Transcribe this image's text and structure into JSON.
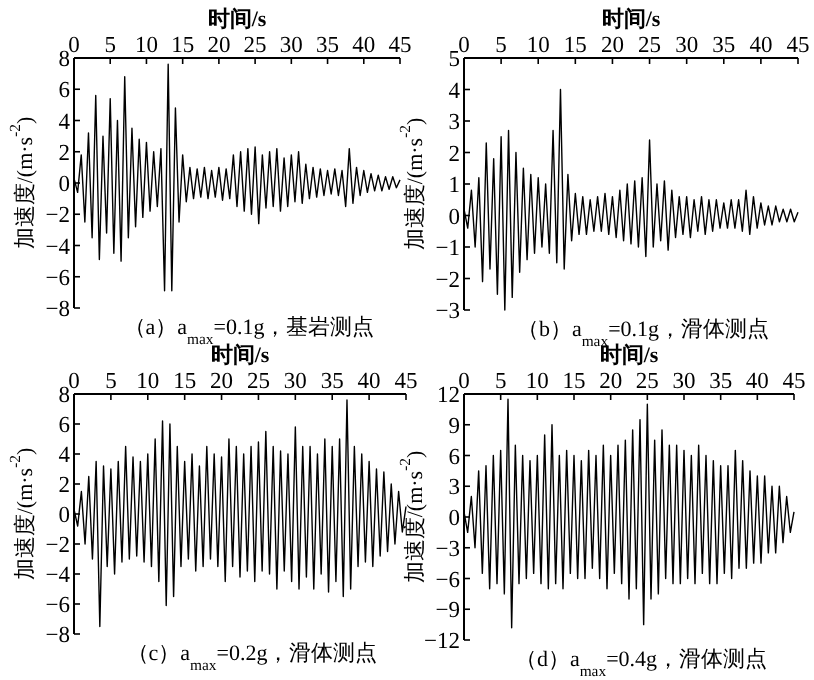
{
  "chart_data": [
    {
      "type": "line",
      "title": "（a）a$_{max}$=0.1g，基岩测点",
      "xlabel": "时间/s",
      "ylabel": "加速度/(m·s$^{-2}$)",
      "color": "#000000",
      "xlim": [
        0,
        45
      ],
      "xticks": [
        0,
        5,
        10,
        15,
        20,
        25,
        30,
        35,
        40,
        45
      ],
      "ylim": [
        -8,
        8
      ],
      "yticks": [
        -8,
        -6,
        -4,
        -2,
        0,
        2,
        4,
        6,
        8
      ],
      "x": [
        0,
        0.5,
        1,
        1.5,
        2,
        2.5,
        3,
        3.5,
        4,
        4.5,
        5,
        5.5,
        6,
        6.5,
        7,
        7.5,
        8,
        8.5,
        9,
        9.5,
        10,
        10.5,
        11,
        11.5,
        12,
        12.5,
        13,
        13.5,
        14,
        14.5,
        15,
        15.5,
        16,
        16.5,
        17,
        17.5,
        18,
        18.5,
        19,
        19.5,
        20,
        20.5,
        21,
        21.5,
        22,
        22.5,
        23,
        23.5,
        24,
        24.5,
        25,
        25.5,
        26,
        26.5,
        27,
        27.5,
        28,
        28.5,
        29,
        29.5,
        30,
        30.5,
        31,
        31.5,
        32,
        32.5,
        33,
        33.5,
        34,
        34.5,
        35,
        35.5,
        36,
        36.5,
        37,
        37.5,
        38,
        38.5,
        39,
        39.5,
        40,
        40.5,
        41,
        41.5,
        42,
        42.5,
        43,
        43.5,
        44,
        44.5,
        45
      ],
      "values": [
        0.3,
        -0.6,
        1.8,
        -2.5,
        3.2,
        -3.5,
        5.6,
        -4.9,
        3.0,
        -3.2,
        5.4,
        -4.5,
        4.0,
        -5.0,
        6.8,
        -3.5,
        3.5,
        -2.8,
        2.8,
        -2.2,
        2.6,
        -1.8,
        2.0,
        -1.5,
        2.2,
        -6.9,
        7.6,
        -6.9,
        4.8,
        -2.5,
        1.8,
        -1.2,
        1.0,
        -1.0,
        0.9,
        -0.9,
        1.0,
        -1.0,
        0.8,
        -0.9,
        1.0,
        -1.1,
        0.9,
        -1.0,
        1.8,
        -1.5,
        2.0,
        -1.8,
        2.2,
        -2.0,
        2.3,
        -2.6,
        1.8,
        -1.6,
        2.0,
        -1.5,
        2.2,
        -1.8,
        1.6,
        -1.5,
        1.8,
        -1.2,
        2.0,
        -1.3,
        1.2,
        -1.0,
        1.0,
        -0.9,
        0.9,
        -0.8,
        0.8,
        -0.7,
        0.9,
        -0.8,
        0.8,
        -1.5,
        2.2,
        -1.3,
        1.0,
        -0.8,
        0.8,
        -0.6,
        0.6,
        -0.5,
        0.5,
        -0.5,
        0.4,
        -0.4,
        0.4,
        -0.3,
        0.2
      ]
    },
    {
      "type": "line",
      "title": "（b）a$_{max}$=0.1g，滑体测点",
      "xlabel": "时间/s",
      "ylabel": "加速度/(m·s$^{-2}$)",
      "color": "#000000",
      "xlim": [
        0,
        45
      ],
      "xticks": [
        0,
        5,
        10,
        15,
        20,
        25,
        30,
        35,
        40,
        45
      ],
      "ylim": [
        -3,
        5
      ],
      "yticks": [
        -3,
        -2,
        -1,
        0,
        1,
        2,
        3,
        4,
        5
      ],
      "x": [
        0,
        0.5,
        1,
        1.5,
        2,
        2.5,
        3,
        3.5,
        4,
        4.5,
        5,
        5.5,
        6,
        6.5,
        7,
        7.5,
        8,
        8.5,
        9,
        9.5,
        10,
        10.5,
        11,
        11.5,
        12,
        12.5,
        13,
        13.5,
        14,
        14.5,
        15,
        15.5,
        16,
        16.5,
        17,
        17.5,
        18,
        18.5,
        19,
        19.5,
        20,
        20.5,
        21,
        21.5,
        22,
        22.5,
        23,
        23.5,
        24,
        24.5,
        25,
        25.5,
        26,
        26.5,
        27,
        27.5,
        28,
        28.5,
        29,
        29.5,
        30,
        30.5,
        31,
        31.5,
        32,
        32.5,
        33,
        33.5,
        34,
        34.5,
        35,
        35.5,
        36,
        36.5,
        37,
        37.5,
        38,
        38.5,
        39,
        39.5,
        40,
        40.5,
        41,
        41.5,
        42,
        42.5,
        43,
        43.5,
        44,
        44.5,
        45
      ],
      "values": [
        0.2,
        -0.4,
        0.8,
        -1.0,
        1.2,
        -2.1,
        2.3,
        -1.7,
        1.8,
        -2.5,
        2.5,
        -3.0,
        2.7,
        -2.6,
        2.0,
        -1.8,
        1.5,
        -1.4,
        1.3,
        -1.2,
        1.2,
        -1.0,
        1.0,
        -1.2,
        2.7,
        -1.5,
        4.0,
        -1.7,
        1.3,
        -0.8,
        0.7,
        -0.6,
        0.6,
        -0.6,
        0.5,
        -0.5,
        0.6,
        -0.5,
        0.7,
        -0.6,
        0.6,
        -0.7,
        0.8,
        -0.8,
        1.0,
        -0.9,
        1.1,
        -1.0,
        1.2,
        -1.3,
        2.4,
        -1.0,
        1.0,
        -0.8,
        1.1,
        -1.1,
        0.8,
        -0.7,
        0.6,
        -0.6,
        0.6,
        -0.7,
        0.5,
        -0.5,
        0.6,
        -0.6,
        0.5,
        -0.5,
        0.5,
        -0.4,
        0.4,
        -0.4,
        0.5,
        -0.4,
        0.5,
        -0.5,
        0.8,
        -0.6,
        0.6,
        -0.4,
        0.4,
        -0.3,
        0.3,
        -0.3,
        0.3,
        -0.2,
        0.2,
        -0.2,
        0.2,
        -0.2,
        0.1
      ]
    },
    {
      "type": "line",
      "title": "（c）a$_{max}$=0.2g，滑体测点",
      "xlabel": "时间/s",
      "ylabel": "加速度/(m·s$^{-2}$)",
      "color": "#000000",
      "xlim": [
        0,
        45
      ],
      "xticks": [
        0,
        5,
        10,
        15,
        20,
        25,
        30,
        35,
        40,
        45
      ],
      "ylim": [
        -8,
        8
      ],
      "yticks": [
        -8,
        -6,
        -4,
        -2,
        0,
        2,
        4,
        6,
        8
      ],
      "x": [
        0,
        0.5,
        1,
        1.5,
        2,
        2.5,
        3,
        3.5,
        4,
        4.5,
        5,
        5.5,
        6,
        6.5,
        7,
        7.5,
        8,
        8.5,
        9,
        9.5,
        10,
        10.5,
        11,
        11.5,
        12,
        12.5,
        13,
        13.5,
        14,
        14.5,
        15,
        15.5,
        16,
        16.5,
        17,
        17.5,
        18,
        18.5,
        19,
        19.5,
        20,
        20.5,
        21,
        21.5,
        22,
        22.5,
        23,
        23.5,
        24,
        24.5,
        25,
        25.5,
        26,
        26.5,
        27,
        27.5,
        28,
        28.5,
        29,
        29.5,
        30,
        30.5,
        31,
        31.5,
        32,
        32.5,
        33,
        33.5,
        34,
        34.5,
        35,
        35.5,
        36,
        36.5,
        37,
        37.5,
        38,
        38.5,
        39,
        39.5,
        40,
        40.5,
        41,
        41.5,
        42,
        42.5,
        43,
        43.5,
        44,
        44.5,
        45
      ],
      "values": [
        0.3,
        -0.8,
        1.5,
        -2.0,
        2.5,
        -3.0,
        3.5,
        -7.5,
        3.2,
        -3.5,
        3.0,
        -4.0,
        3.5,
        -3.2,
        4.5,
        -3.0,
        3.8,
        -2.8,
        3.5,
        -3.2,
        4.0,
        -3.5,
        5.0,
        -4.5,
        6.2,
        -6.1,
        6.0,
        -5.5,
        4.5,
        -3.5,
        3.5,
        -3.0,
        4.0,
        -3.8,
        3.2,
        -3.5,
        4.5,
        -3.0,
        4.0,
        -3.5,
        3.8,
        -4.5,
        5.0,
        -3.5,
        4.5,
        -4.2,
        4.0,
        -3.8,
        4.5,
        -4.5,
        4.8,
        -3.8,
        5.5,
        -4.0,
        4.5,
        -5.0,
        4.2,
        -3.8,
        4.0,
        -4.5,
        5.8,
        -5.0,
        4.5,
        -4.2,
        4.5,
        -5.0,
        4.0,
        -4.0,
        5.0,
        -5.2,
        4.5,
        -4.5,
        5.0,
        -5.5,
        7.6,
        -5.0,
        4.5,
        -3.5,
        4.0,
        -3.2,
        3.5,
        -3.5,
        3.0,
        -2.8,
        2.8,
        -2.5,
        2.0,
        -2.0,
        1.5,
        -1.2,
        0.5
      ]
    },
    {
      "type": "line",
      "title": "（d）a$_{max}$=0.4g，滑体测点",
      "xlabel": "时间/s",
      "ylabel": "加速度/(m·s$^{-2}$)",
      "color": "#000000",
      "xlim": [
        0,
        45
      ],
      "xticks": [
        0,
        5,
        10,
        15,
        20,
        25,
        30,
        35,
        40,
        45
      ],
      "ylim": [
        -12,
        12
      ],
      "yticks": [
        -12,
        -9,
        -6,
        -3,
        0,
        3,
        6,
        9,
        12
      ],
      "x": [
        0,
        0.5,
        1,
        1.5,
        2,
        2.5,
        3,
        3.5,
        4,
        4.5,
        5,
        5.5,
        6,
        6.5,
        7,
        7.5,
        8,
        8.5,
        9,
        9.5,
        10,
        10.5,
        11,
        11.5,
        12,
        12.5,
        13,
        13.5,
        14,
        14.5,
        15,
        15.5,
        16,
        16.5,
        17,
        17.5,
        18,
        18.5,
        19,
        19.5,
        20,
        20.5,
        21,
        21.5,
        22,
        22.5,
        23,
        23.5,
        24,
        24.5,
        25,
        25.5,
        26,
        26.5,
        27,
        27.5,
        28,
        28.5,
        29,
        29.5,
        30,
        30.5,
        31,
        31.5,
        32,
        32.5,
        33,
        33.5,
        34,
        34.5,
        35,
        35.5,
        36,
        36.5,
        37,
        37.5,
        38,
        38.5,
        39,
        39.5,
        40,
        40.5,
        41,
        41.5,
        42,
        42.5,
        43,
        43.5,
        44,
        44.5,
        45
      ],
      "values": [
        0.5,
        -1.5,
        2.0,
        -3.0,
        4.5,
        -5.5,
        5.0,
        -7.0,
        6.0,
        -6.5,
        6.5,
        -7.5,
        11.5,
        -10.8,
        7.0,
        -6.5,
        6.0,
        -6.0,
        5.5,
        -5.5,
        6.0,
        -6.5,
        8.0,
        -7.0,
        9.0,
        -6.5,
        6.0,
        -7.0,
        6.5,
        -5.5,
        6.0,
        -6.0,
        5.5,
        -6.0,
        6.5,
        -5.0,
        6.0,
        -6.0,
        7.0,
        -7.0,
        6.0,
        -5.5,
        7.0,
        -6.5,
        7.5,
        -8.0,
        8.5,
        -7.0,
        9.5,
        -10.5,
        11.0,
        -8.0,
        7.5,
        -7.5,
        8.5,
        -6.0,
        7.0,
        -6.5,
        7.0,
        -6.5,
        6.5,
        -6.0,
        6.0,
        -6.5,
        7.0,
        -5.5,
        6.0,
        -6.5,
        5.5,
        -6.5,
        5.0,
        -5.5,
        5.0,
        -6.0,
        6.5,
        -5.0,
        5.5,
        -5.0,
        4.5,
        -4.5,
        4.0,
        -4.5,
        4.0,
        -3.5,
        3.0,
        -3.5,
        3.0,
        -2.5,
        2.0,
        -1.5,
        0.5
      ]
    }
  ]
}
